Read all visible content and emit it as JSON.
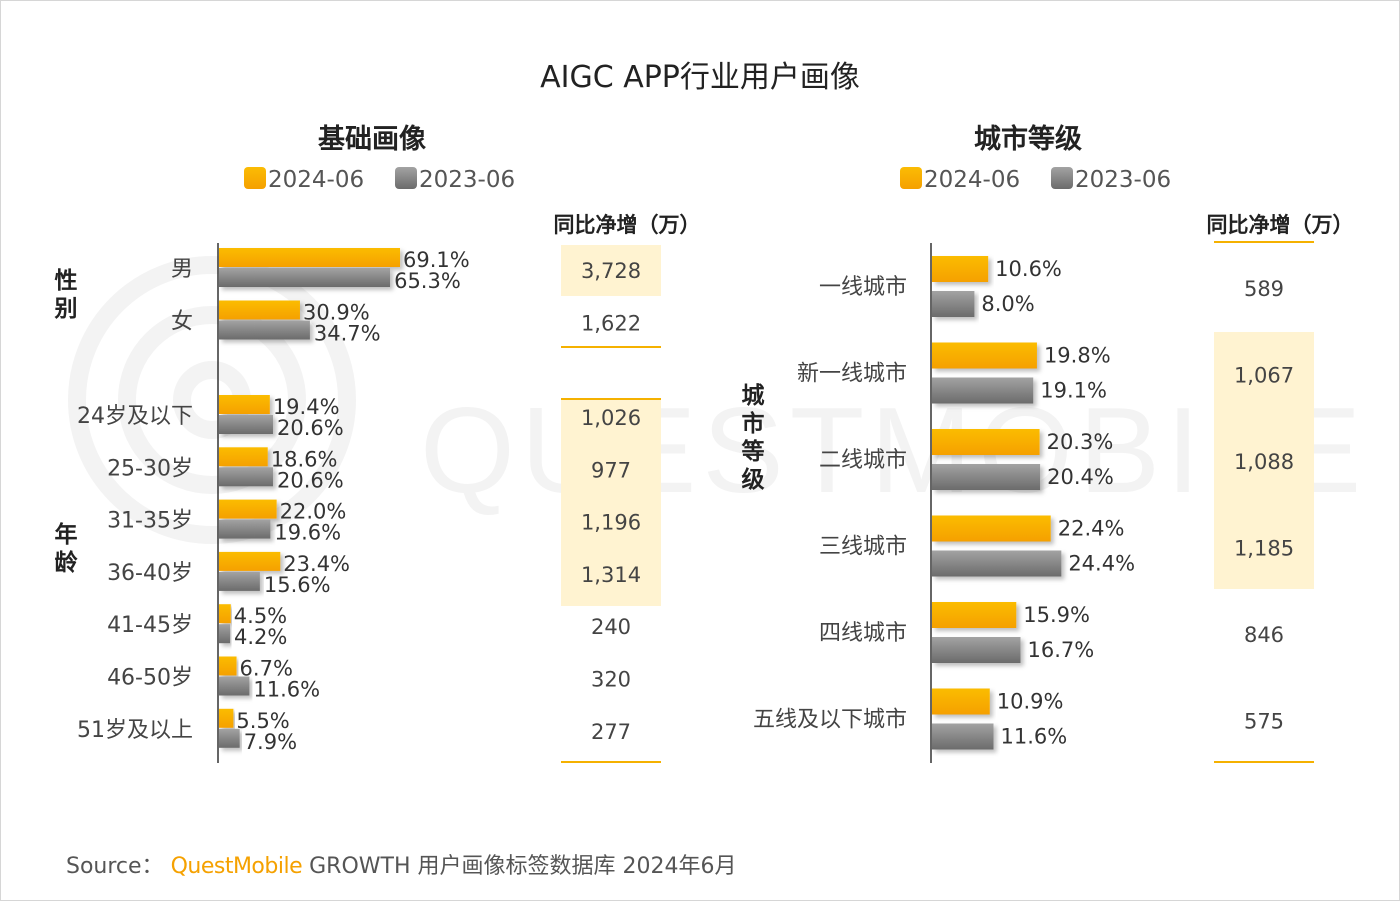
{
  "title": "AIGC APP行业用户画像",
  "colors": {
    "series_2024": "#fbbc04",
    "series_2024_dark": "#f5a000",
    "series_2023": "#8c8c8c",
    "series_2023_dark": "#6b6b6b",
    "highlight_bg": "#fff3d1",
    "rule": "#f5b100",
    "watermark": "#f3f3f3"
  },
  "watermark": "QUESTMOBILE",
  "source": {
    "prefix": "Source：",
    "brand": "QuestMobile",
    "rest": "GROWTH 用户画像标签数据库 2024年6月"
  },
  "chart_data": [
    {
      "type": "bar",
      "orientation": "horizontal",
      "title": "基础画像",
      "legend": [
        "2024-06",
        "2023-06"
      ],
      "legend_placement": "top",
      "net_header": "同比净增（万）",
      "groups": [
        {
          "label": "性别",
          "categories": [
            "男",
            "女"
          ],
          "series": [
            {
              "name": "2024-06",
              "values": [
                69.1,
                30.9
              ]
            },
            {
              "name": "2023-06",
              "values": [
                65.3,
                34.7
              ]
            }
          ],
          "net_increase": [
            "3,728",
            "1,622"
          ],
          "highlight": [
            true,
            false
          ]
        },
        {
          "label": "年龄",
          "categories": [
            "24岁及以下",
            "25-30岁",
            "31-35岁",
            "36-40岁",
            "41-45岁",
            "46-50岁",
            "51岁及以上"
          ],
          "series": [
            {
              "name": "2024-06",
              "values": [
                19.4,
                18.6,
                22.0,
                23.4,
                4.5,
                6.7,
                5.5
              ]
            },
            {
              "name": "2023-06",
              "values": [
                20.6,
                20.6,
                19.6,
                15.6,
                4.2,
                11.6,
                7.9
              ]
            }
          ],
          "net_increase": [
            "1,026",
            "977",
            "1,196",
            "1,314",
            "240",
            "320",
            "277"
          ],
          "highlight": [
            true,
            true,
            true,
            true,
            false,
            false,
            false
          ]
        }
      ],
      "unit": "%"
    },
    {
      "type": "bar",
      "orientation": "horizontal",
      "title": "城市等级",
      "legend": [
        "2024-06",
        "2023-06"
      ],
      "legend_placement": "top",
      "net_header": "同比净增（万）",
      "groups": [
        {
          "label": "城市等级",
          "categories": [
            "一线城市",
            "新一线城市",
            "二线城市",
            "三线城市",
            "四线城市",
            "五线及以下城市"
          ],
          "series": [
            {
              "name": "2024-06",
              "values": [
                10.6,
                19.8,
                20.3,
                22.4,
                15.9,
                10.9
              ]
            },
            {
              "name": "2023-06",
              "values": [
                8.0,
                19.1,
                20.4,
                24.4,
                16.7,
                11.6
              ]
            }
          ],
          "net_increase": [
            "589",
            "1,067",
            "1,088",
            "1,185",
            "846",
            "575"
          ],
          "highlight": [
            false,
            true,
            true,
            true,
            false,
            false
          ]
        }
      ],
      "unit": "%"
    }
  ]
}
